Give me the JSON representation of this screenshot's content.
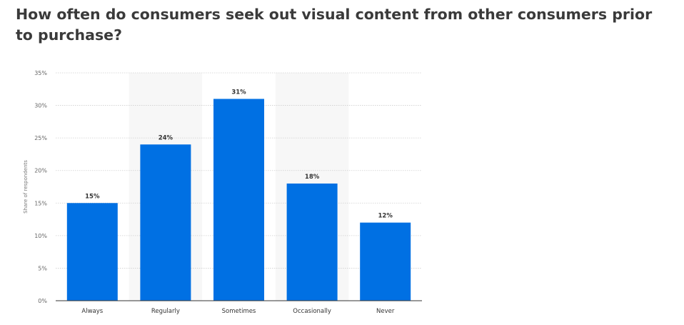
{
  "page": {
    "title": "How often do consumers seek out visual content from other consumers prior to purchase?"
  },
  "colors": {
    "bar": "#0070e3",
    "band": "#f7f7f7",
    "grid": "#cfcfcf",
    "axis": "#333333"
  },
  "chart_data": {
    "type": "bar",
    "categories": [
      "Always",
      "Regularly",
      "Sometimes",
      "Occasionally",
      "Never"
    ],
    "values": [
      15,
      24,
      31,
      18,
      12
    ],
    "value_labels": [
      "15%",
      "24%",
      "31%",
      "18%",
      "12%"
    ],
    "title": "How often do consumers seek out visual content from other consumers prior to purchase?",
    "xlabel": "",
    "ylabel": "Share of respondents",
    "ylim": [
      0,
      35
    ],
    "yticks": [
      0,
      5,
      10,
      15,
      20,
      25,
      30,
      35
    ],
    "ytick_labels": [
      "0%",
      "5%",
      "10%",
      "15%",
      "20%",
      "25%",
      "30%",
      "35%"
    ],
    "grid": true,
    "legend": "none"
  }
}
